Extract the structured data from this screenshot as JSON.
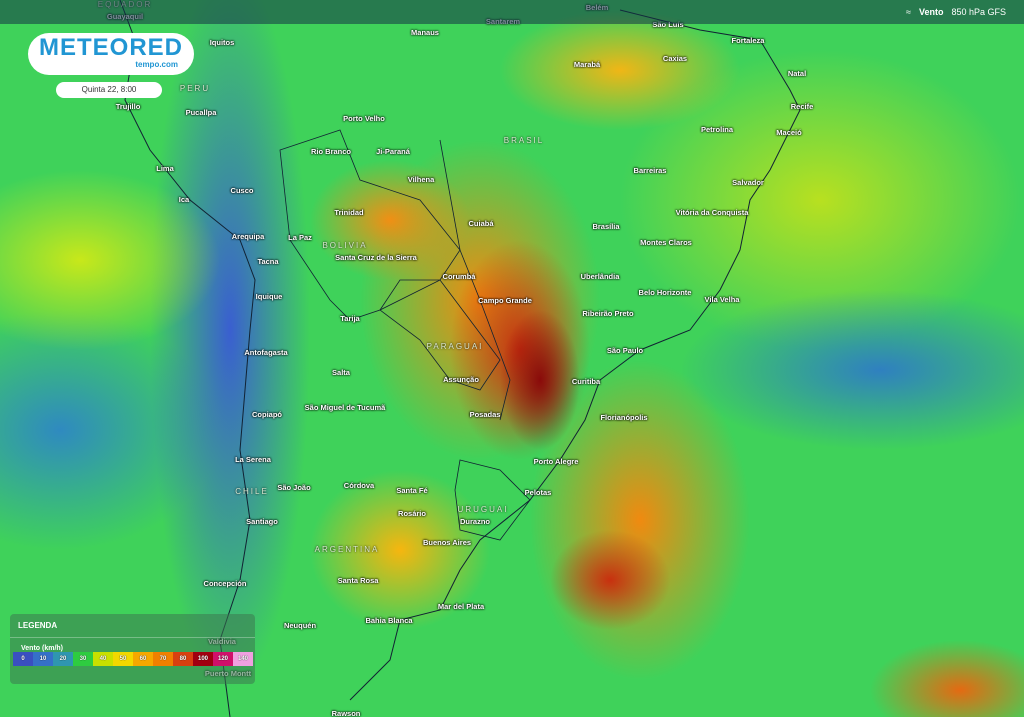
{
  "header": {
    "layer_icon": "wind-icon",
    "layer_name": "Vento",
    "layer_detail": "850 hPa GFS"
  },
  "logo": {
    "brand": "METEORED",
    "sub": "tempo.com"
  },
  "date": "Quinta 22, 8:00",
  "legend": {
    "title": "LEGENDA",
    "variable": "Vento (km/h)",
    "stops": [
      {
        "v": "0",
        "c": "#3a4fc0"
      },
      {
        "v": "10",
        "c": "#3570c8"
      },
      {
        "v": "20",
        "c": "#2f96b0"
      },
      {
        "v": "30",
        "c": "#2ecc40"
      },
      {
        "v": "40",
        "c": "#c8e000"
      },
      {
        "v": "50",
        "c": "#f2d800"
      },
      {
        "v": "60",
        "c": "#f5a800"
      },
      {
        "v": "70",
        "c": "#f08000"
      },
      {
        "v": "80",
        "c": "#d84010"
      },
      {
        "v": "100",
        "c": "#a00010"
      },
      {
        "v": "120",
        "c": "#d0106a"
      },
      {
        "v": "140",
        "c": "#f0a0e0"
      }
    ]
  },
  "countries": [
    "EQUADOR",
    "PERU",
    "BRASIL",
    "BOLIVIA",
    "PARAGUAI",
    "CHILE",
    "URUGUAI",
    "ARGENTINA"
  ],
  "cities": [
    "Guayaquil",
    "Iquitos",
    "Manaus",
    "Santarem",
    "Belém",
    "São Luís",
    "Fortaleza",
    "Marabá",
    "Caxias",
    "Natal",
    "Trujillo",
    "Pucallpa",
    "Porto Velho",
    "Recife",
    "Petrolina",
    "Maceió",
    "Rio Branco",
    "Ji-Paraná",
    "Lima",
    "Vilhena",
    "Barreiras",
    "Salvador",
    "Cusco",
    "Ica",
    "Trinidad",
    "Cuiabá",
    "Vitória da Conquista",
    "Brasília",
    "Arequipa",
    "La Paz",
    "Montes Claros",
    "Santa Cruz de la Sierra",
    "Tacna",
    "Corumbá",
    "Uberlândia",
    "Belo Horizonte",
    "Iquique",
    "Campo Grande",
    "Vila Velha",
    "Ribeirão Preto",
    "Tarija",
    "Antofagasta",
    "São Paulo",
    "Assunção",
    "Salta",
    "Curitiba",
    "Copiapó",
    "São Miguel de Tucumã",
    "Posadas",
    "Florianópolis",
    "La Serena",
    "Porto Alegre",
    "Córdova",
    "São João",
    "Santa Fé",
    "Pelotas",
    "Rosário",
    "Durazno",
    "Santiago",
    "Buenos Aires",
    "Concepción",
    "Santa Rosa",
    "Mar del Plata",
    "Bahia Blanca",
    "Neuquén",
    "Valdivia",
    "Puerto Montt",
    "Rawson"
  ]
}
